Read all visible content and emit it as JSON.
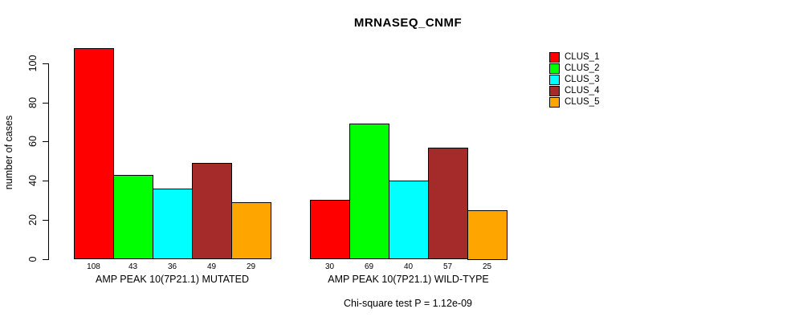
{
  "title": "MRNASEQ_CNMF",
  "y_axis": {
    "label": "number of cases",
    "ticks": [
      0,
      20,
      40,
      60,
      80,
      100
    ]
  },
  "chart_data": {
    "type": "bar",
    "title": "MRNASEQ_CNMF",
    "ylabel": "number of cases",
    "xlabel": "",
    "ylim": [
      0,
      108
    ],
    "grid": false,
    "legend_position": "top-right-outside-plot",
    "categories": [
      "AMP PEAK 10(7P21.1) MUTATED",
      "AMP PEAK 10(7P21.1) WILD-TYPE"
    ],
    "series": [
      {
        "name": "CLUS_1",
        "color": "#FF0000",
        "values": [
          108,
          30
        ]
      },
      {
        "name": "CLUS_2",
        "color": "#00FF00",
        "values": [
          43,
          69
        ]
      },
      {
        "name": "CLUS_3",
        "color": "#00FFFF",
        "values": [
          36,
          40
        ]
      },
      {
        "name": "CLUS_4",
        "color": "#A52A2A",
        "values": [
          49,
          57
        ]
      },
      {
        "name": "CLUS_5",
        "color": "#FFA500",
        "values": [
          29,
          25
        ]
      }
    ],
    "bar_value_labels": [
      [
        108,
        43,
        36,
        49,
        29
      ],
      [
        30,
        69,
        40,
        57,
        25
      ]
    ]
  },
  "footer": {
    "note": "Chi-square test P = 1.12e-09"
  }
}
